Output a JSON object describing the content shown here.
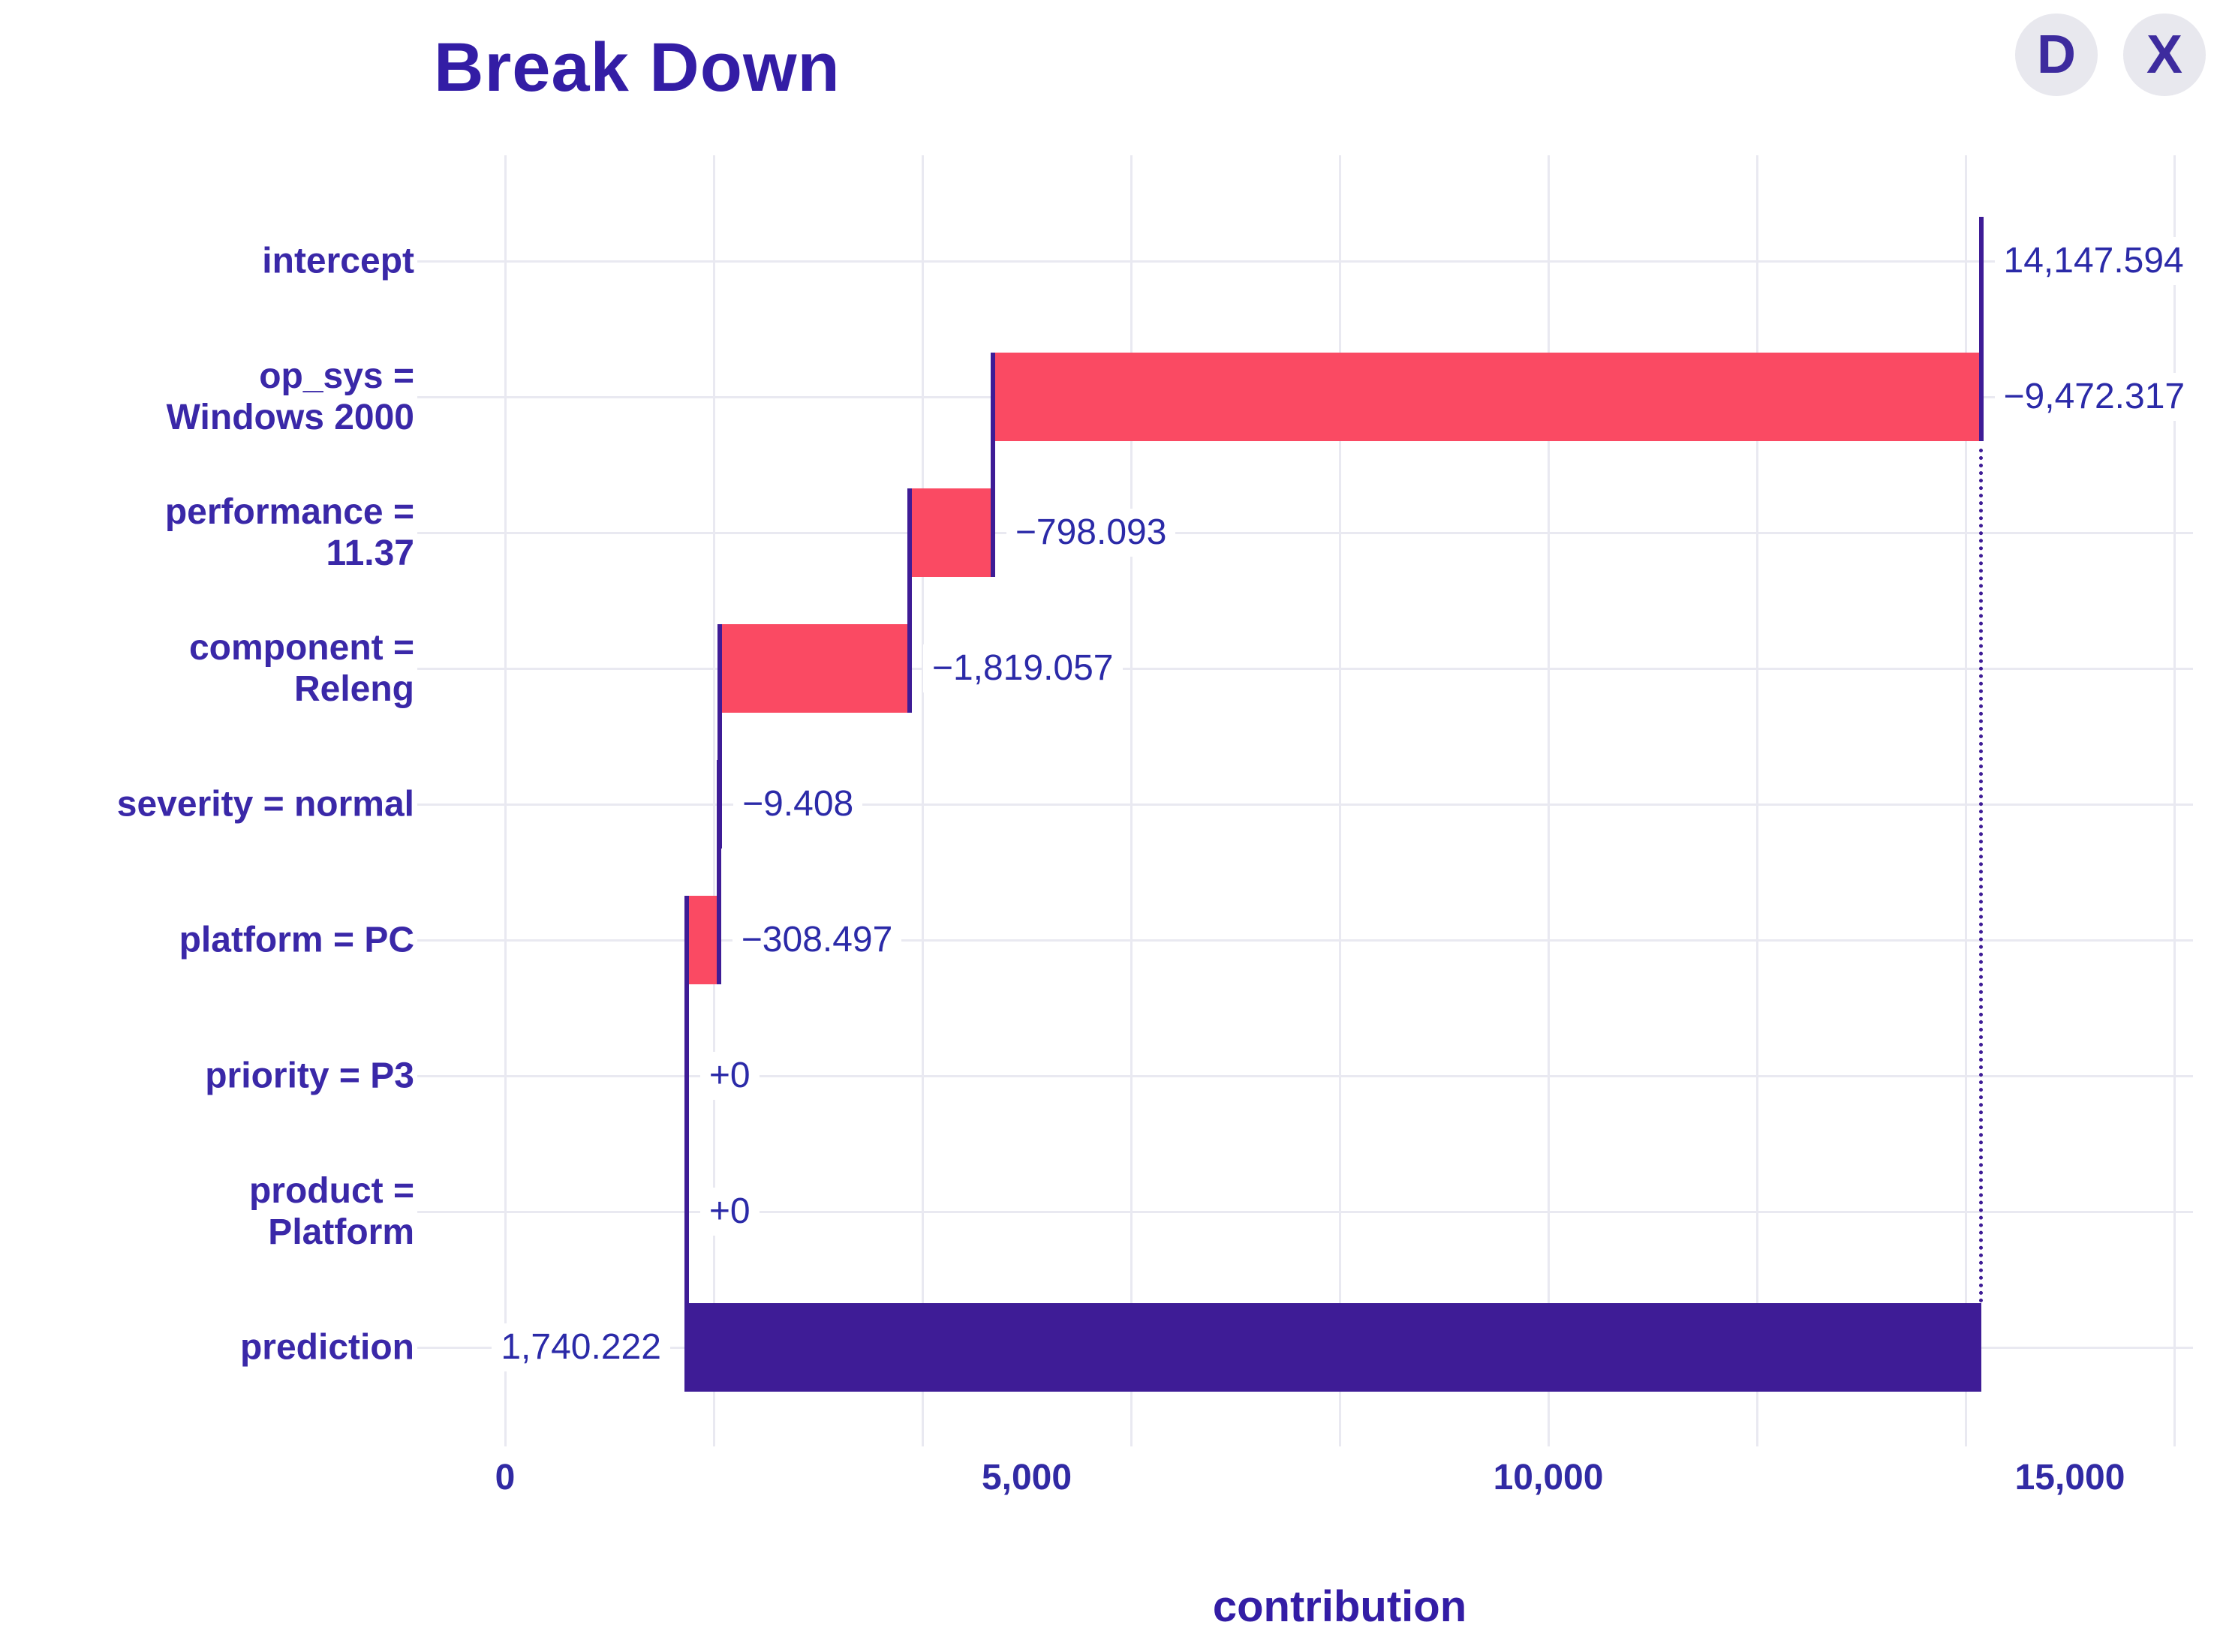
{
  "header": {
    "title": "Break Down",
    "download_label": "D",
    "close_label": "X"
  },
  "colors": {
    "negative_bar": "#fa4a63",
    "prediction_bar": "#3e1c96",
    "connector": "#3e1c96",
    "text": "#3a28a8",
    "value_text": "#2b2aa8",
    "grid": "#e9e9f1",
    "button_bg": "#e8e8ee"
  },
  "chart_data": {
    "type": "bar",
    "variant": "breakdown-waterfall",
    "orientation": "horizontal",
    "title": "Break Down",
    "xlabel": "contribution",
    "xlim": [
      0,
      16000
    ],
    "gridline_step": 2000,
    "grid": true,
    "x_ticks": [
      {
        "value": 0,
        "label": "0"
      },
      {
        "value": 5000,
        "label": "5,000"
      },
      {
        "value": 10000,
        "label": "10,000"
      },
      {
        "value": 15000,
        "label": "15,000"
      }
    ],
    "intercept": 14147.594,
    "prediction": 1740.222,
    "rows": [
      {
        "label": "intercept",
        "value": 14147.594,
        "value_label": "14,147.594",
        "start": 0,
        "end": 14147.594,
        "kind": "intercept"
      },
      {
        "label": "op_sys =\nWindows 2000",
        "value": -9472.317,
        "value_label": "−9,472.317",
        "start": 14147.594,
        "end": 4675.277,
        "kind": "negative"
      },
      {
        "label": "performance =\n11.37",
        "value": -798.093,
        "value_label": "−798.093",
        "start": 4675.277,
        "end": 3877.184,
        "kind": "negative"
      },
      {
        "label": "component =\nReleng",
        "value": -1819.057,
        "value_label": "−1,819.057",
        "start": 3877.184,
        "end": 2058.127,
        "kind": "negative"
      },
      {
        "label": "severity = normal",
        "value": -9.408,
        "value_label": "−9.408",
        "start": 2058.127,
        "end": 2048.719,
        "kind": "negative"
      },
      {
        "label": "platform = PC",
        "value": -308.497,
        "value_label": "−308.497",
        "start": 2048.719,
        "end": 1740.222,
        "kind": "negative"
      },
      {
        "label": "priority = P3",
        "value": 0,
        "value_label": "+0",
        "start": 1740.222,
        "end": 1740.222,
        "kind": "zero"
      },
      {
        "label": "product =\nPlatform",
        "value": 0,
        "value_label": "+0",
        "start": 1740.222,
        "end": 1740.222,
        "kind": "zero"
      },
      {
        "label": "prediction",
        "value": 1740.222,
        "value_label": "1,740.222",
        "start": 1740.222,
        "end": 14147.594,
        "kind": "prediction"
      }
    ]
  }
}
